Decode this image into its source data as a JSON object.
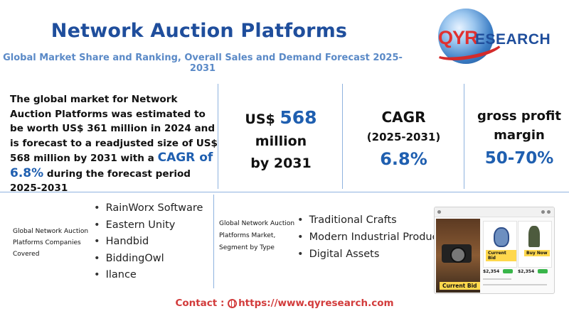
{
  "header": {
    "title": "Network Auction Platforms",
    "subtitle": "Global Market Share and Ranking, Overall Sales and Demand Forecast 2025-2031"
  },
  "logo": {
    "part1": "QYR",
    "part2": "ESEARCH"
  },
  "summary": {
    "text_before": "The global market for Network Auction Platforms was estimated to be worth US$ 361 million in 2024 and is forecast to a readjusted size of US$ 568 million by 2031 with a ",
    "highlight": "CAGR of 6.8%",
    "text_after": " during the forecast period 2025-2031"
  },
  "stats": {
    "size": {
      "prefix": "US$",
      "value": "568",
      "line2": "million",
      "line3": "by 2031"
    },
    "cagr": {
      "label": "CAGR",
      "period": "(2025-2031)",
      "value": "6.8%"
    },
    "margin": {
      "line1": "gross profit",
      "line2": "margin",
      "value": "50-70%"
    }
  },
  "companies": {
    "label": "Global Network Auction Platforms Companies Covered",
    "items": [
      "RainWorx Software",
      "Eastern Unity",
      "Handbid",
      "BiddingOwl",
      "Ilance"
    ]
  },
  "segment": {
    "label": "Global Network Auction Platforms Market, Segment by Type",
    "items": [
      "Traditional Crafts",
      "Modern Industrial Products",
      "Digital Assets"
    ]
  },
  "mockup": {
    "hero_tag": "Current Bid",
    "card1_tag": "Current Bid",
    "card2_tag": "Buy Now",
    "price1": "$2,354",
    "price2": "$2,354"
  },
  "contact": {
    "label": "Contact :",
    "url": "https://www.qyresearch.com"
  },
  "colors": {
    "title": "#1f4e9c",
    "accent": "#1f5fb0",
    "subtitle": "#5b8ac7",
    "contact": "#d23b3b",
    "divider": "#8fb3df"
  }
}
